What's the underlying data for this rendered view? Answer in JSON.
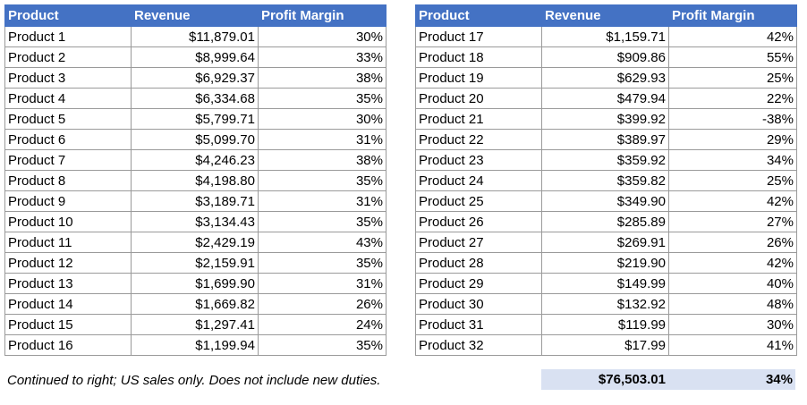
{
  "headers": {
    "product": "Product",
    "revenue": "Revenue",
    "profit_margin": "Profit Margin"
  },
  "left_rows": [
    {
      "product": "Product 1",
      "revenue": "$11,879.01",
      "margin": "30%"
    },
    {
      "product": "Product 2",
      "revenue": "$8,999.64",
      "margin": "33%"
    },
    {
      "product": "Product 3",
      "revenue": "$6,929.37",
      "margin": "38%"
    },
    {
      "product": "Product 4",
      "revenue": "$6,334.68",
      "margin": "35%"
    },
    {
      "product": "Product 5",
      "revenue": "$5,799.71",
      "margin": "30%"
    },
    {
      "product": "Product 6",
      "revenue": "$5,099.70",
      "margin": "31%"
    },
    {
      "product": "Product 7",
      "revenue": "$4,246.23",
      "margin": "38%"
    },
    {
      "product": "Product 8",
      "revenue": "$4,198.80",
      "margin": "35%"
    },
    {
      "product": "Product 9",
      "revenue": "$3,189.71",
      "margin": "31%"
    },
    {
      "product": "Product 10",
      "revenue": "$3,134.43",
      "margin": "35%"
    },
    {
      "product": "Product 11",
      "revenue": "$2,429.19",
      "margin": "43%"
    },
    {
      "product": "Product 12",
      "revenue": "$2,159.91",
      "margin": "35%"
    },
    {
      "product": "Product 13",
      "revenue": "$1,699.90",
      "margin": "31%"
    },
    {
      "product": "Product 14",
      "revenue": "$1,669.82",
      "margin": "26%"
    },
    {
      "product": "Product 15",
      "revenue": "$1,297.41",
      "margin": "24%"
    },
    {
      "product": "Product 16",
      "revenue": "$1,199.94",
      "margin": "35%"
    }
  ],
  "right_rows": [
    {
      "product": "Product 17",
      "revenue": "$1,159.71",
      "margin": "42%"
    },
    {
      "product": "Product 18",
      "revenue": "$909.86",
      "margin": "55%"
    },
    {
      "product": "Product 19",
      "revenue": "$629.93",
      "margin": "25%"
    },
    {
      "product": "Product 20",
      "revenue": "$479.94",
      "margin": "22%"
    },
    {
      "product": "Product 21",
      "revenue": "$399.92",
      "margin": "-38%"
    },
    {
      "product": "Product 22",
      "revenue": "$389.97",
      "margin": "29%"
    },
    {
      "product": "Product 23",
      "revenue": "$359.92",
      "margin": "34%"
    },
    {
      "product": "Product 24",
      "revenue": "$359.82",
      "margin": "25%"
    },
    {
      "product": "Product 25",
      "revenue": "$349.90",
      "margin": "42%"
    },
    {
      "product": "Product 26",
      "revenue": "$285.89",
      "margin": "27%"
    },
    {
      "product": "Product 27",
      "revenue": "$269.91",
      "margin": "26%"
    },
    {
      "product": "Product 28",
      "revenue": "$219.90",
      "margin": "42%"
    },
    {
      "product": "Product 29",
      "revenue": "$149.99",
      "margin": "40%"
    },
    {
      "product": "Product 30",
      "revenue": "$132.92",
      "margin": "48%"
    },
    {
      "product": "Product 31",
      "revenue": "$119.99",
      "margin": "30%"
    },
    {
      "product": "Product 32",
      "revenue": "$17.99",
      "margin": "41%"
    }
  ],
  "footnote": "Continued to right; US sales only. Does not include new duties.",
  "totals": {
    "revenue": "$76,503.01",
    "margin": "34%"
  },
  "colors": {
    "header": "#4472c4",
    "total_fill": "#d9e1f2"
  }
}
